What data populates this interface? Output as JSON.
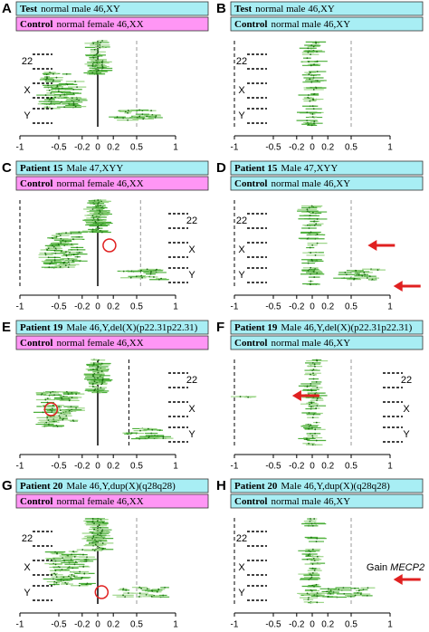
{
  "panels": [
    {
      "letter": "A",
      "test": {
        "name": "Test",
        "desc": "normal male 46,XY",
        "color": "#a8eef4"
      },
      "control": {
        "name": "Control",
        "desc": "normal female 46,XX",
        "color": "#ff96f5"
      }
    },
    {
      "letter": "B",
      "test": {
        "name": "Test",
        "desc": "normal male 46,XY",
        "color": "#a8eef4"
      },
      "control": {
        "name": "Control",
        "desc": "normal male 46,XY",
        "color": "#a8eef4"
      }
    },
    {
      "letter": "C",
      "test": {
        "name": "Patient 15",
        "desc": "Male    47,XYY",
        "color": "#a8eef4"
      },
      "control": {
        "name": "Control",
        "desc": "normal female 46,XX",
        "color": "#ff96f5"
      }
    },
    {
      "letter": "D",
      "test": {
        "name": "Patient 15",
        "desc": "Male    47,XYY",
        "color": "#a8eef4"
      },
      "control": {
        "name": "Control",
        "desc": "normal male 46,XY",
        "color": "#a8eef4"
      }
    },
    {
      "letter": "E",
      "test": {
        "name": "Patient 19",
        "desc": "Male 46,Y,del(X)(p22.31p22.31)",
        "color": "#a8eef4"
      },
      "control": {
        "name": "Control",
        "desc": "normal female 46,XX",
        "color": "#ff96f5"
      }
    },
    {
      "letter": "F",
      "test": {
        "name": "Patient 19",
        "desc": "Male 46,Y,del(X)(p22.31p22.31)",
        "color": "#a8eef4"
      },
      "control": {
        "name": "Control",
        "desc": "normal male 46,XY",
        "color": "#a8eef4"
      }
    },
    {
      "letter": "G",
      "test": {
        "name": "Patient 20",
        "desc": "Male 46,Y,dup(X)(q28q28)",
        "color": "#a8eef4"
      },
      "control": {
        "name": "Control",
        "desc": "normal female 46,XX",
        "color": "#ff96f5"
      }
    },
    {
      "letter": "H",
      "test": {
        "name": "Patient 20",
        "desc": "Male 46,Y,dup(X)(q28q28)",
        "color": "#a8eef4"
      },
      "control": {
        "name": "Control",
        "desc": "normal male 46,XY",
        "color": "#a8eef4"
      }
    }
  ],
  "chromosome_labels": [
    "22",
    "X",
    "Y"
  ],
  "axis_labels": [
    "-1",
    "-0.5",
    "-0.2",
    "0",
    "0.2",
    "0.5",
    "1"
  ],
  "annotation": {
    "prefix": "Gain",
    "gene": "MECP2"
  }
}
